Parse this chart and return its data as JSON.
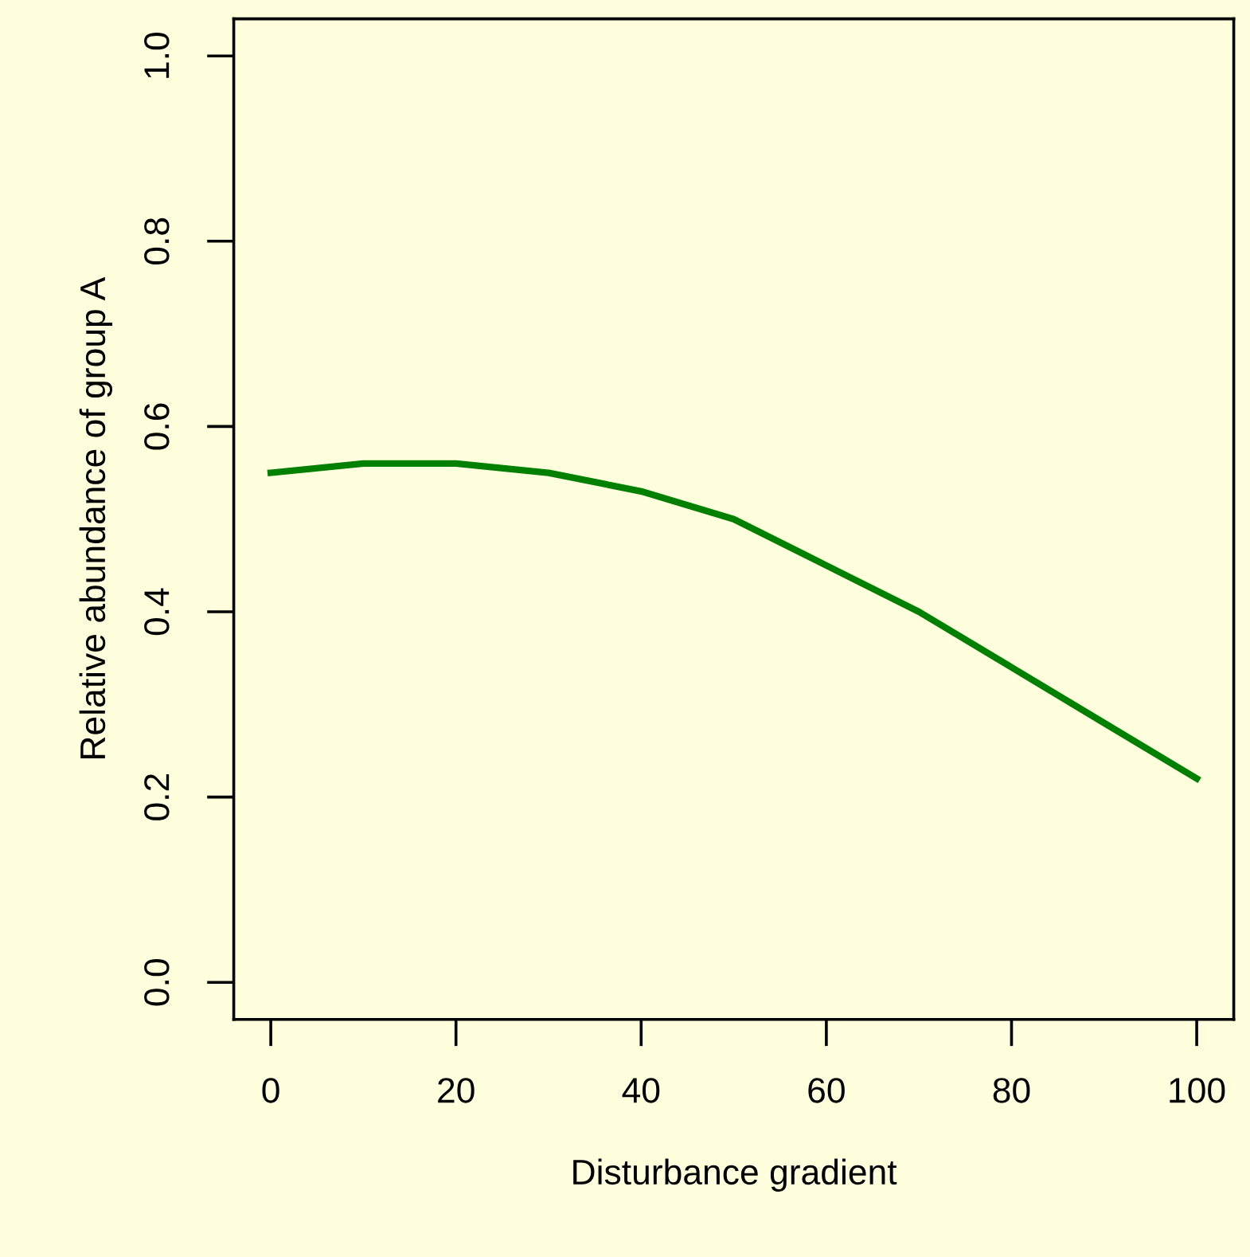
{
  "chart_data": {
    "type": "line",
    "xlabel": "Disturbance gradient",
    "ylabel": "Relative abundance of group A",
    "x": [
      0,
      10,
      20,
      30,
      40,
      50,
      60,
      70,
      80,
      90,
      100
    ],
    "series": [
      {
        "color": "#008000",
        "values": [
          0.55,
          0.56,
          0.56,
          0.55,
          0.53,
          0.5,
          0.45,
          0.4,
          0.34,
          0.28,
          0.22
        ]
      }
    ],
    "xlim": [
      -4,
      104
    ],
    "ylim": [
      -0.04,
      1.04
    ],
    "xticks": [
      0,
      20,
      40,
      60,
      80,
      100
    ],
    "yticks": [
      {
        "value": 0,
        "label": "0.0"
      },
      {
        "value": 0.2,
        "label": "0.2"
      },
      {
        "value": 0.4,
        "label": "0.4"
      },
      {
        "value": 0.6,
        "label": "0.6"
      },
      {
        "value": 0.8,
        "label": "0.8"
      },
      {
        "value": 1,
        "label": "1.0"
      }
    ],
    "grid": false,
    "legend": false,
    "marker": "none",
    "line_style": "solid"
  }
}
